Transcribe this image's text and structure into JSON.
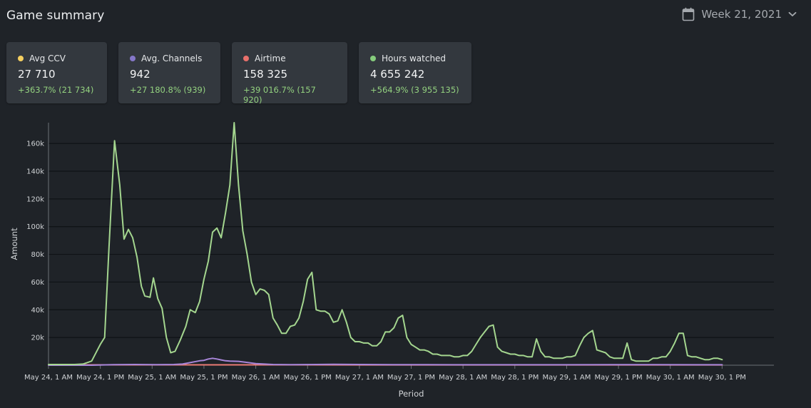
{
  "header": {
    "title": "Game summary",
    "period_label": "Week 21, 2021",
    "calendar_icon": "calendar-icon",
    "chevron_icon": "chevron-down-icon"
  },
  "cards": [
    {
      "label": "Avg CCV",
      "value": "27 710",
      "change": "+363.7% (21 734)",
      "color": "#f5cf60"
    },
    {
      "label": "Avg. Channels",
      "value": "942",
      "change": "+27 180.8% (939)",
      "color": "#8577c9"
    },
    {
      "label": "Airtime",
      "value": "158 325",
      "change": "+39 016.7% (157 920)",
      "color": "#e8706b"
    },
    {
      "label": "Hours watched",
      "value": "4 655 242",
      "change": "+564.9% (3 955 135)",
      "color": "#86cc7c"
    }
  ],
  "chart_data": {
    "type": "line",
    "xlabel": "Period",
    "ylabel": "Amount",
    "ylim": [
      0,
      175000
    ],
    "yticks": [
      {
        "value": 20000,
        "label": "20k"
      },
      {
        "value": 40000,
        "label": "40k"
      },
      {
        "value": 60000,
        "label": "60k"
      },
      {
        "value": 80000,
        "label": "80k"
      },
      {
        "value": 100000,
        "label": "100k"
      },
      {
        "value": 120000,
        "label": "120k"
      },
      {
        "value": 140000,
        "label": "140k"
      },
      {
        "value": 160000,
        "label": "160k"
      }
    ],
    "xlim": [
      0,
      168
    ],
    "xticks": [
      {
        "hour": 0,
        "label": "May 24, 1 AM"
      },
      {
        "hour": 12,
        "label": "May 24, 1 PM"
      },
      {
        "hour": 24,
        "label": "May 25, 1 AM"
      },
      {
        "hour": 36,
        "label": "May 25, 1 PM"
      },
      {
        "hour": 48,
        "label": "May 26, 1 AM"
      },
      {
        "hour": 60,
        "label": "May 26, 1 PM"
      },
      {
        "hour": 72,
        "label": "May 27, 1 AM"
      },
      {
        "hour": 84,
        "label": "May 27, 1 PM"
      },
      {
        "hour": 96,
        "label": "May 28, 1 AM"
      },
      {
        "hour": 108,
        "label": "May 28, 1 PM"
      },
      {
        "hour": 120,
        "label": "May 29, 1 AM"
      },
      {
        "hour": 132,
        "label": "May 29, 1 PM"
      },
      {
        "hour": 144,
        "label": "May 30, 1 AM"
      },
      {
        "hour": 156,
        "label": "May 30, 1 PM"
      }
    ],
    "grid": true,
    "legend": "none",
    "series": [
      {
        "color": "#a4d68f",
        "points": [
          [
            0,
            500
          ],
          [
            3,
            500
          ],
          [
            6,
            500
          ],
          [
            8,
            800
          ],
          [
            10,
            3000
          ],
          [
            12,
            15000
          ],
          [
            13,
            20000
          ],
          [
            14,
            85000
          ],
          [
            15.3,
            162000
          ],
          [
            16.5,
            130000
          ],
          [
            17.5,
            91000
          ],
          [
            18.5,
            98000
          ],
          [
            19.5,
            92000
          ],
          [
            20.5,
            78000
          ],
          [
            21.5,
            57000
          ],
          [
            22.3,
            50000
          ],
          [
            23.5,
            49000
          ],
          [
            24.3,
            63000
          ],
          [
            25.3,
            48000
          ],
          [
            26.3,
            41000
          ],
          [
            27.3,
            20000
          ],
          [
            28.3,
            9000
          ],
          [
            29.3,
            10000
          ],
          [
            30.5,
            18000
          ],
          [
            31.8,
            28000
          ],
          [
            32.8,
            40000
          ],
          [
            34,
            38000
          ],
          [
            35,
            46000
          ],
          [
            36,
            62000
          ],
          [
            37,
            75000
          ],
          [
            38,
            96000
          ],
          [
            39,
            99000
          ],
          [
            40,
            92000
          ],
          [
            41,
            110000
          ],
          [
            42,
            130000
          ],
          [
            43,
            175000
          ],
          [
            44,
            130000
          ],
          [
            45,
            97000
          ],
          [
            46,
            80000
          ],
          [
            47,
            60000
          ],
          [
            48,
            51000
          ],
          [
            49,
            55000
          ],
          [
            50,
            54000
          ],
          [
            51,
            51000
          ],
          [
            52,
            34000
          ],
          [
            53,
            29000
          ],
          [
            54,
            23000
          ],
          [
            55,
            23000
          ],
          [
            56,
            28000
          ],
          [
            57,
            29000
          ],
          [
            58,
            34000
          ],
          [
            59,
            46000
          ],
          [
            60,
            62000
          ],
          [
            61,
            67000
          ],
          [
            62,
            40000
          ],
          [
            63,
            39000
          ],
          [
            64,
            39000
          ],
          [
            65,
            37000
          ],
          [
            66,
            31000
          ],
          [
            67,
            32000
          ],
          [
            68,
            40000
          ],
          [
            69,
            31000
          ],
          [
            70,
            20000
          ],
          [
            71,
            17000
          ],
          [
            72,
            17000
          ],
          [
            73,
            16000
          ],
          [
            74,
            16000
          ],
          [
            75,
            14000
          ],
          [
            76,
            14000
          ],
          [
            77,
            17000
          ],
          [
            78,
            24000
          ],
          [
            79,
            24000
          ],
          [
            80,
            27000
          ],
          [
            81,
            34000
          ],
          [
            82,
            36000
          ],
          [
            83,
            20000
          ],
          [
            84,
            15000
          ],
          [
            85,
            13000
          ],
          [
            86,
            11000
          ],
          [
            87,
            11000
          ],
          [
            88,
            10000
          ],
          [
            89,
            8000
          ],
          [
            90,
            8000
          ],
          [
            91,
            7000
          ],
          [
            92,
            7000
          ],
          [
            93,
            7000
          ],
          [
            94,
            6000
          ],
          [
            95,
            6000
          ],
          [
            96,
            7000
          ],
          [
            97,
            7000
          ],
          [
            98,
            10000
          ],
          [
            99,
            15000
          ],
          [
            100,
            20000
          ],
          [
            101,
            24000
          ],
          [
            102,
            28000
          ],
          [
            103,
            29000
          ],
          [
            104,
            13000
          ],
          [
            105,
            10000
          ],
          [
            106,
            9000
          ],
          [
            107,
            8000
          ],
          [
            108,
            8000
          ],
          [
            109,
            7000
          ],
          [
            110,
            7000
          ],
          [
            111,
            6000
          ],
          [
            112,
            6000
          ],
          [
            113,
            19000
          ],
          [
            114,
            10000
          ],
          [
            115,
            6000
          ],
          [
            116,
            6000
          ],
          [
            117,
            5000
          ],
          [
            118,
            5000
          ],
          [
            119,
            5000
          ],
          [
            120,
            6000
          ],
          [
            121,
            6000
          ],
          [
            122,
            7000
          ],
          [
            123,
            14000
          ],
          [
            124,
            20000
          ],
          [
            125,
            23000
          ],
          [
            126,
            25000
          ],
          [
            127,
            11000
          ],
          [
            128,
            10000
          ],
          [
            129,
            9000
          ],
          [
            130,
            6000
          ],
          [
            131,
            5000
          ],
          [
            132,
            5000
          ],
          [
            133,
            5000
          ],
          [
            134,
            16000
          ],
          [
            135,
            4000
          ],
          [
            136,
            3000
          ],
          [
            137,
            3000
          ],
          [
            138,
            3000
          ],
          [
            139,
            3000
          ],
          [
            140,
            5000
          ],
          [
            141,
            5000
          ],
          [
            142,
            6000
          ],
          [
            143,
            6000
          ],
          [
            144,
            10000
          ],
          [
            145,
            16000
          ],
          [
            146,
            23000
          ],
          [
            147,
            23000
          ],
          [
            148,
            7000
          ],
          [
            149,
            6000
          ],
          [
            150,
            6000
          ],
          [
            151,
            5000
          ],
          [
            152,
            4000
          ],
          [
            153,
            4000
          ],
          [
            154,
            5000
          ],
          [
            155,
            5000
          ],
          [
            156,
            4000
          ]
        ]
      },
      {
        "color": "#a886d9",
        "points": [
          [
            0,
            0
          ],
          [
            10,
            0
          ],
          [
            15,
            400
          ],
          [
            20,
            500
          ],
          [
            25,
            400
          ],
          [
            29,
            500
          ],
          [
            31,
            800
          ],
          [
            33,
            2000
          ],
          [
            35,
            3200
          ],
          [
            36,
            3500
          ],
          [
            37,
            4500
          ],
          [
            38,
            5000
          ],
          [
            39,
            4500
          ],
          [
            40,
            3800
          ],
          [
            41,
            3200
          ],
          [
            42,
            3000
          ],
          [
            44,
            2800
          ],
          [
            46,
            2000
          ],
          [
            48,
            1200
          ],
          [
            50,
            800
          ],
          [
            52,
            500
          ],
          [
            56,
            400
          ],
          [
            62,
            500
          ],
          [
            66,
            600
          ],
          [
            72,
            500
          ],
          [
            80,
            400
          ],
          [
            88,
            400
          ],
          [
            96,
            300
          ],
          [
            110,
            300
          ],
          [
            120,
            300
          ],
          [
            130,
            400
          ],
          [
            140,
            400
          ],
          [
            150,
            300
          ],
          [
            156,
            300
          ]
        ]
      },
      {
        "color": "#eb7b74",
        "points": [
          [
            0,
            200
          ],
          [
            20,
            250
          ],
          [
            40,
            260
          ],
          [
            60,
            240
          ],
          [
            80,
            220
          ],
          [
            100,
            200
          ],
          [
            120,
            220
          ],
          [
            140,
            230
          ],
          [
            156,
            220
          ]
        ]
      }
    ]
  }
}
